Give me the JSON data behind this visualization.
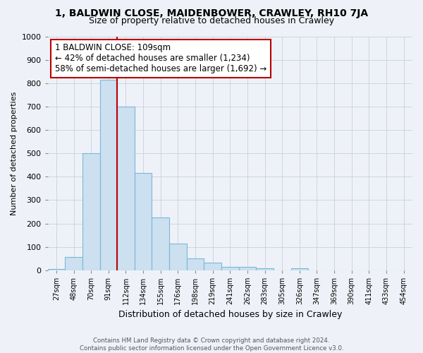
{
  "title": "1, BALDWIN CLOSE, MAIDENBOWER, CRAWLEY, RH10 7JA",
  "subtitle": "Size of property relative to detached houses in Crawley",
  "xlabel": "Distribution of detached houses by size in Crawley",
  "ylabel": "Number of detached properties",
  "footer_line1": "Contains HM Land Registry data © Crown copyright and database right 2024.",
  "footer_line2": "Contains public sector information licensed under the Open Government Licence v3.0.",
  "bar_labels": [
    "27sqm",
    "48sqm",
    "70sqm",
    "91sqm",
    "112sqm",
    "134sqm",
    "155sqm",
    "176sqm",
    "198sqm",
    "219sqm",
    "241sqm",
    "262sqm",
    "283sqm",
    "305sqm",
    "326sqm",
    "347sqm",
    "369sqm",
    "390sqm",
    "411sqm",
    "433sqm",
    "454sqm"
  ],
  "bar_values": [
    5,
    57,
    500,
    815,
    700,
    415,
    225,
    113,
    52,
    33,
    15,
    13,
    8,
    0,
    8,
    0,
    0,
    0,
    0,
    0,
    0
  ],
  "bar_color": "#cce0f0",
  "bar_edge_color": "#7ab8d8",
  "vline_color": "#bb0000",
  "annotation_text": "1 BALDWIN CLOSE: 109sqm\n← 42% of detached houses are smaller (1,234)\n58% of semi-detached houses are larger (1,692) →",
  "annotation_box_color": "#ffffff",
  "annotation_box_edge_color": "#bb0000",
  "ylim": [
    0,
    1000
  ],
  "yticks": [
    0,
    100,
    200,
    300,
    400,
    500,
    600,
    700,
    800,
    900,
    1000
  ],
  "grid_color": "#c8d0dc",
  "bg_color": "#eef2f8",
  "title_fontsize": 10,
  "subtitle_fontsize": 9,
  "annotation_fontsize": 8.5,
  "ylabel_fontsize": 8,
  "xlabel_fontsize": 9
}
